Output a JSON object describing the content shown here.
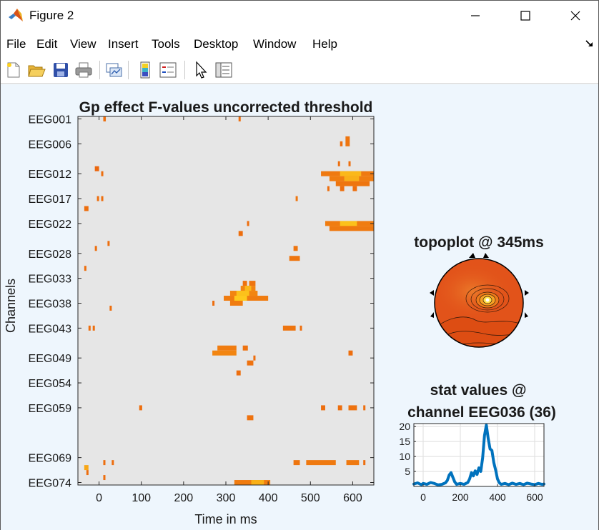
{
  "window": {
    "title": "Figure 2"
  },
  "menubar": {
    "items": [
      "File",
      "Edit",
      "View",
      "Insert",
      "Tools",
      "Desktop",
      "Window",
      "Help"
    ]
  },
  "toolbar": {
    "buttons": [
      {
        "name": "new-figure-icon"
      },
      {
        "name": "open-file-icon"
      },
      {
        "name": "save-icon"
      },
      {
        "name": "print-icon"
      },
      {
        "name": "link-plot-icon"
      },
      {
        "name": "colorbar-icon"
      },
      {
        "name": "legend-icon"
      },
      {
        "name": "edit-plot-pointer-icon"
      },
      {
        "name": "property-inspector-icon"
      }
    ]
  },
  "chart_data": [
    {
      "type": "heatmap",
      "title": "Gp effect F-values uncorrected threshold",
      "xlabel": "Time in ms",
      "ylabel": "Channels",
      "xlim": [
        -50,
        650
      ],
      "xticks": [
        0,
        100,
        200,
        300,
        400,
        500,
        600
      ],
      "ylim": [
        1,
        74
      ],
      "yticks": [
        "EEG001",
        "EEG006",
        "EEG012",
        "EEG017",
        "EEG022",
        "EEG028",
        "EEG033",
        "EEG038",
        "EEG043",
        "EEG049",
        "EEG054",
        "EEG059",
        "EEG069",
        "EEG074"
      ],
      "ytick_channels": [
        1,
        6,
        12,
        17,
        22,
        28,
        33,
        38,
        43,
        49,
        54,
        59,
        69,
        74
      ],
      "background_color": "#e6e6e6",
      "colors": {
        "low": "#e8590c",
        "mid": "#f07c10",
        "high": "#ffd21e"
      },
      "significant_clusters": [
        {
          "ch": [
            1,
            1
          ],
          "t": [
            10,
            16
          ],
          "v": 0.3
        },
        {
          "ch": [
            1,
            1
          ],
          "t": [
            330,
            334
          ],
          "v": 0.3
        },
        {
          "ch": [
            5,
            6
          ],
          "t": [
            583,
            593
          ],
          "v": 0.4
        },
        {
          "ch": [
            6,
            6
          ],
          "t": [
            570,
            576
          ],
          "v": 0.3
        },
        {
          "ch": [
            11,
            11
          ],
          "t": [
            -10,
            0
          ],
          "v": 0.2
        },
        {
          "ch": [
            12,
            12
          ],
          "t": [
            5,
            10
          ],
          "v": 0.3
        },
        {
          "ch": [
            10,
            10
          ],
          "t": [
            565,
            570
          ],
          "v": 0.3
        },
        {
          "ch": [
            10,
            10
          ],
          "t": [
            590,
            595
          ],
          "v": 0.3
        },
        {
          "ch": [
            12,
            12
          ],
          "t": [
            525,
            650
          ],
          "v": 0.45
        },
        {
          "ch": [
            12,
            12
          ],
          "t": [
            570,
            620
          ],
          "v": 0.85
        },
        {
          "ch": [
            13,
            13
          ],
          "t": [
            545,
            650
          ],
          "v": 0.5
        },
        {
          "ch": [
            13,
            13
          ],
          "t": [
            580,
            615
          ],
          "v": 0.8
        },
        {
          "ch": [
            14,
            14
          ],
          "t": [
            560,
            640
          ],
          "v": 0.4
        },
        {
          "ch": [
            15,
            15
          ],
          "t": [
            540,
            545
          ],
          "v": 0.3
        },
        {
          "ch": [
            15,
            15
          ],
          "t": [
            570,
            580
          ],
          "v": 0.3
        },
        {
          "ch": [
            15,
            15
          ],
          "t": [
            600,
            610
          ],
          "v": 0.3
        },
        {
          "ch": [
            17,
            17
          ],
          "t": [
            -5,
            0
          ],
          "v": 0.3
        },
        {
          "ch": [
            17,
            17
          ],
          "t": [
            5,
            8
          ],
          "v": 0.3
        },
        {
          "ch": [
            17,
            17
          ],
          "t": [
            465,
            470
          ],
          "v": 0.4
        },
        {
          "ch": [
            19,
            19
          ],
          "t": [
            -35,
            -25
          ],
          "v": 0.3
        },
        {
          "ch": [
            22,
            22
          ],
          "t": [
            350,
            353
          ],
          "v": 0.3
        },
        {
          "ch": [
            22,
            22
          ],
          "t": [
            535,
            650
          ],
          "v": 0.5
        },
        {
          "ch": [
            22,
            22
          ],
          "t": [
            570,
            610
          ],
          "v": 0.9
        },
        {
          "ch": [
            23,
            23
          ],
          "t": [
            545,
            650
          ],
          "v": 0.45
        },
        {
          "ch": [
            24,
            24
          ],
          "t": [
            330,
            340
          ],
          "v": 0.3
        },
        {
          "ch": [
            26,
            26
          ],
          "t": [
            20,
            23
          ],
          "v": 0.3
        },
        {
          "ch": [
            27,
            27
          ],
          "t": [
            -10,
            -5
          ],
          "v": 0.3
        },
        {
          "ch": [
            27,
            27
          ],
          "t": [
            460,
            470
          ],
          "v": 0.4
        },
        {
          "ch": [
            29,
            29
          ],
          "t": [
            450,
            475
          ],
          "v": 0.4
        },
        {
          "ch": [
            31,
            31
          ],
          "t": [
            -35,
            -30
          ],
          "v": 0.3
        },
        {
          "ch": [
            34,
            34
          ],
          "t": [
            340,
            350
          ],
          "v": 0.35
        },
        {
          "ch": [
            34,
            34
          ],
          "t": [
            355,
            370
          ],
          "v": 0.4
        },
        {
          "ch": [
            35,
            35
          ],
          "t": [
            335,
            370
          ],
          "v": 0.55
        },
        {
          "ch": [
            35,
            35
          ],
          "t": [
            345,
            360
          ],
          "v": 0.85
        },
        {
          "ch": [
            36,
            36
          ],
          "t": [
            310,
            375
          ],
          "v": 0.55
        },
        {
          "ch": [
            36,
            36
          ],
          "t": [
            325,
            355
          ],
          "v": 0.9
        },
        {
          "ch": [
            37,
            37
          ],
          "t": [
            295,
            400
          ],
          "v": 0.5
        },
        {
          "ch": [
            37,
            37
          ],
          "t": [
            320,
            350
          ],
          "v": 0.95
        },
        {
          "ch": [
            38,
            38
          ],
          "t": [
            310,
            340
          ],
          "v": 0.5
        },
        {
          "ch": [
            38,
            38
          ],
          "t": [
            268,
            272
          ],
          "v": 0.3
        },
        {
          "ch": [
            39,
            39
          ],
          "t": [
            25,
            30
          ],
          "v": 0.3
        },
        {
          "ch": [
            43,
            43
          ],
          "t": [
            -25,
            -20
          ],
          "v": 0.3
        },
        {
          "ch": [
            43,
            43
          ],
          "t": [
            -15,
            -10
          ],
          "v": 0.3
        },
        {
          "ch": [
            43,
            43
          ],
          "t": [
            435,
            465
          ],
          "v": 0.4
        },
        {
          "ch": [
            43,
            43
          ],
          "t": [
            475,
            480
          ],
          "v": 0.3
        },
        {
          "ch": [
            47,
            47
          ],
          "t": [
            280,
            325
          ],
          "v": 0.5
        },
        {
          "ch": [
            47,
            47
          ],
          "t": [
            340,
            352
          ],
          "v": 0.35
        },
        {
          "ch": [
            48,
            48
          ],
          "t": [
            268,
            325
          ],
          "v": 0.55
        },
        {
          "ch": [
            48,
            48
          ],
          "t": [
            590,
            600
          ],
          "v": 0.3
        },
        {
          "ch": [
            49,
            49
          ],
          "t": [
            365,
            370
          ],
          "v": 0.3
        },
        {
          "ch": [
            50,
            50
          ],
          "t": [
            350,
            365
          ],
          "v": 0.35
        },
        {
          "ch": [
            52,
            52
          ],
          "t": [
            325,
            335
          ],
          "v": 0.3
        },
        {
          "ch": [
            59,
            59
          ],
          "t": [
            95,
            102
          ],
          "v": 0.3
        },
        {
          "ch": [
            59,
            59
          ],
          "t": [
            525,
            535
          ],
          "v": 0.3
        },
        {
          "ch": [
            59,
            59
          ],
          "t": [
            565,
            575
          ],
          "v": 0.3
        },
        {
          "ch": [
            59,
            59
          ],
          "t": [
            590,
            610
          ],
          "v": 0.35
        },
        {
          "ch": [
            59,
            59
          ],
          "t": [
            625,
            630
          ],
          "v": 0.3
        },
        {
          "ch": [
            61,
            61
          ],
          "t": [
            350,
            365
          ],
          "v": 0.35
        },
        {
          "ch": [
            70,
            70
          ],
          "t": [
            460,
            475
          ],
          "v": 0.4
        },
        {
          "ch": [
            70,
            70
          ],
          "t": [
            490,
            560
          ],
          "v": 0.45
        },
        {
          "ch": [
            70,
            70
          ],
          "t": [
            585,
            615
          ],
          "v": 0.45
        },
        {
          "ch": [
            70,
            70
          ],
          "t": [
            625,
            630
          ],
          "v": 0.3
        },
        {
          "ch": [
            70,
            70
          ],
          "t": [
            10,
            13
          ],
          "v": 0.3
        },
        {
          "ch": [
            70,
            70
          ],
          "t": [
            30,
            33
          ],
          "v": 0.3
        },
        {
          "ch": [
            71,
            71
          ],
          "t": [
            -35,
            -25
          ],
          "v": 0.75
        },
        {
          "ch": [
            72,
            72
          ],
          "t": [
            -30,
            -25
          ],
          "v": 0.3
        },
        {
          "ch": [
            73,
            73
          ],
          "t": [
            10,
            13
          ],
          "v": 0.3
        },
        {
          "ch": [
            74,
            74
          ],
          "t": [
            320,
            405
          ],
          "v": 0.5
        },
        {
          "ch": [
            74,
            74
          ],
          "t": [
            360,
            390
          ],
          "v": 0.8
        }
      ]
    },
    {
      "type": "topoplot",
      "title": "topoplot @ 345ms",
      "background_color": "#e2531a",
      "peak": {
        "x": 0.62,
        "y": 0.47,
        "color": "#ffffff"
      }
    },
    {
      "type": "line",
      "title": "stat values @",
      "subtitle": "channel EEG036 (36)",
      "xlim": [
        -50,
        650
      ],
      "xticks": [
        0,
        200,
        400,
        600
      ],
      "ylim": [
        0,
        21
      ],
      "yticks": [
        5,
        10,
        15,
        20
      ],
      "grid": true,
      "color": "#0072bd",
      "series": [
        {
          "x": [
            -50,
            -30,
            -10,
            0,
            20,
            40,
            60,
            80,
            100,
            120,
            130,
            140,
            150,
            160,
            170,
            180,
            200,
            220,
            240,
            250,
            260,
            270,
            280,
            290,
            300,
            310,
            320,
            330,
            340,
            350,
            360,
            370,
            380,
            390,
            400,
            410,
            420,
            440,
            460,
            480,
            500,
            520,
            540,
            560,
            580,
            600,
            620,
            640,
            650
          ],
          "y": [
            0.8,
            1.2,
            0.6,
            1.0,
            0.7,
            1.3,
            1.0,
            0.5,
            0.7,
            1.2,
            2.0,
            3.8,
            4.6,
            3.0,
            1.5,
            0.7,
            1.0,
            0.7,
            1.3,
            2.5,
            4.6,
            3.5,
            5.2,
            4.0,
            6.2,
            5.0,
            9.5,
            17.0,
            20.5,
            16.0,
            12.5,
            12.0,
            8.0,
            5.5,
            2.5,
            1.2,
            0.7,
            1.0,
            0.6,
            1.1,
            0.7,
            1.0,
            0.6,
            1.1,
            0.8,
            0.6,
            1.0,
            0.7,
            0.8
          ]
        }
      ]
    }
  ]
}
